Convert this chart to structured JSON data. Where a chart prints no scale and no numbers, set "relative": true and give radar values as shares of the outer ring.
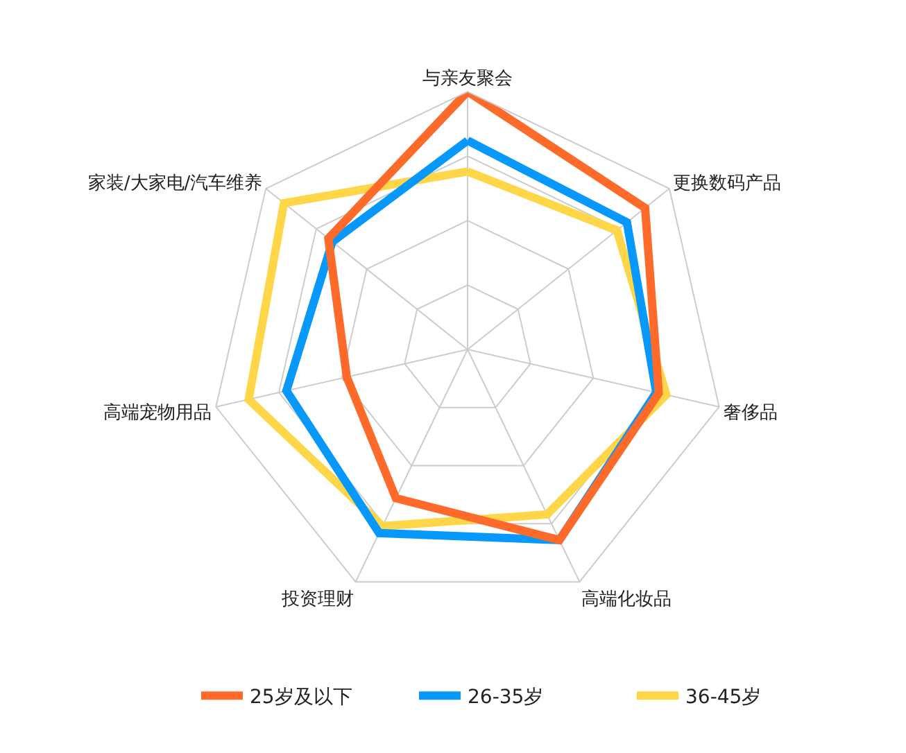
{
  "chart_data": {
    "type": "radar",
    "relative": true,
    "categories": [
      "与亲友聚会",
      "更换数码产品",
      "奢侈品",
      "高端化妆品",
      "投资理财",
      "高端宠物用品",
      "家装/大家电/汽车维养"
    ],
    "series": [
      {
        "name": "25岁及以下",
        "color": "#fe6a2a",
        "values": [
          1.0,
          0.88,
          0.76,
          0.82,
          0.64,
          0.48,
          0.69
        ]
      },
      {
        "name": "26-35岁",
        "color": "#0798fb",
        "values": [
          0.81,
          0.79,
          0.75,
          0.82,
          0.79,
          0.72,
          0.67
        ]
      },
      {
        "name": "36-45岁",
        "color": "#fed648",
        "values": [
          0.69,
          0.74,
          0.79,
          0.71,
          0.76,
          0.87,
          0.91
        ]
      }
    ],
    "grid": true,
    "legend": "bottom",
    "marker": "none",
    "line_style": "solid"
  }
}
